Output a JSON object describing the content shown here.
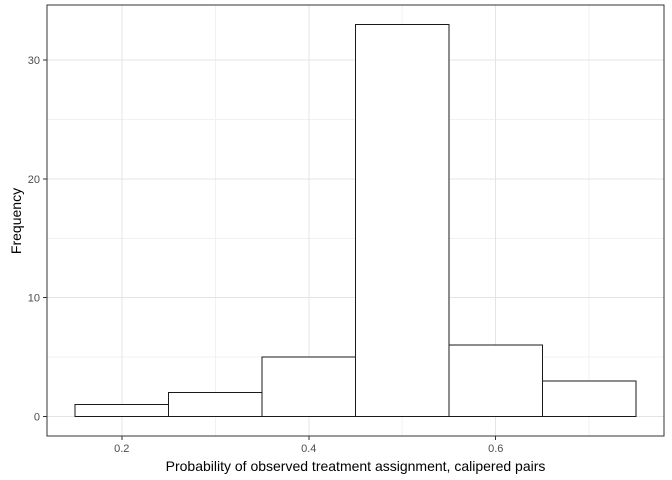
{
  "chart_data": {
    "type": "bar",
    "subtype": "histogram",
    "title": "",
    "xlabel": "Probability of observed treatment assignment, calipered pairs",
    "ylabel": "Frequency",
    "bin_edges": [
      0.15,
      0.25,
      0.35,
      0.45,
      0.55,
      0.65,
      0.75
    ],
    "counts": [
      1,
      2,
      5,
      33,
      6,
      3
    ],
    "x_ticks": [
      {
        "value": 0.2,
        "label": "0.2"
      },
      {
        "value": 0.4,
        "label": "0.4"
      },
      {
        "value": 0.6,
        "label": "0.6"
      }
    ],
    "y_ticks": [
      {
        "value": 0,
        "label": "0"
      },
      {
        "value": 10,
        "label": "10"
      },
      {
        "value": 20,
        "label": "20"
      },
      {
        "value": 30,
        "label": "30"
      }
    ],
    "x_minor_gridlines": [
      0.3,
      0.5,
      0.7
    ],
    "y_minor_gridlines": [
      5,
      15,
      25
    ],
    "xlim": [
      0.12,
      0.78
    ],
    "ylim": [
      -1.65,
      34.65
    ],
    "grid": true,
    "legend": "none",
    "colors": {
      "background": "#FFFFFF",
      "panel_background": "#FFFFFF",
      "grid_major": "#E4E4E4",
      "grid_minor": "#F1F1F1",
      "bar_fill": "#FFFFFF",
      "bar_stroke": "#1A1A1A",
      "panel_border": "#333333",
      "tick_mark": "#333333",
      "tick_label": "#4D4D4D",
      "axis_title": "#000000"
    }
  }
}
